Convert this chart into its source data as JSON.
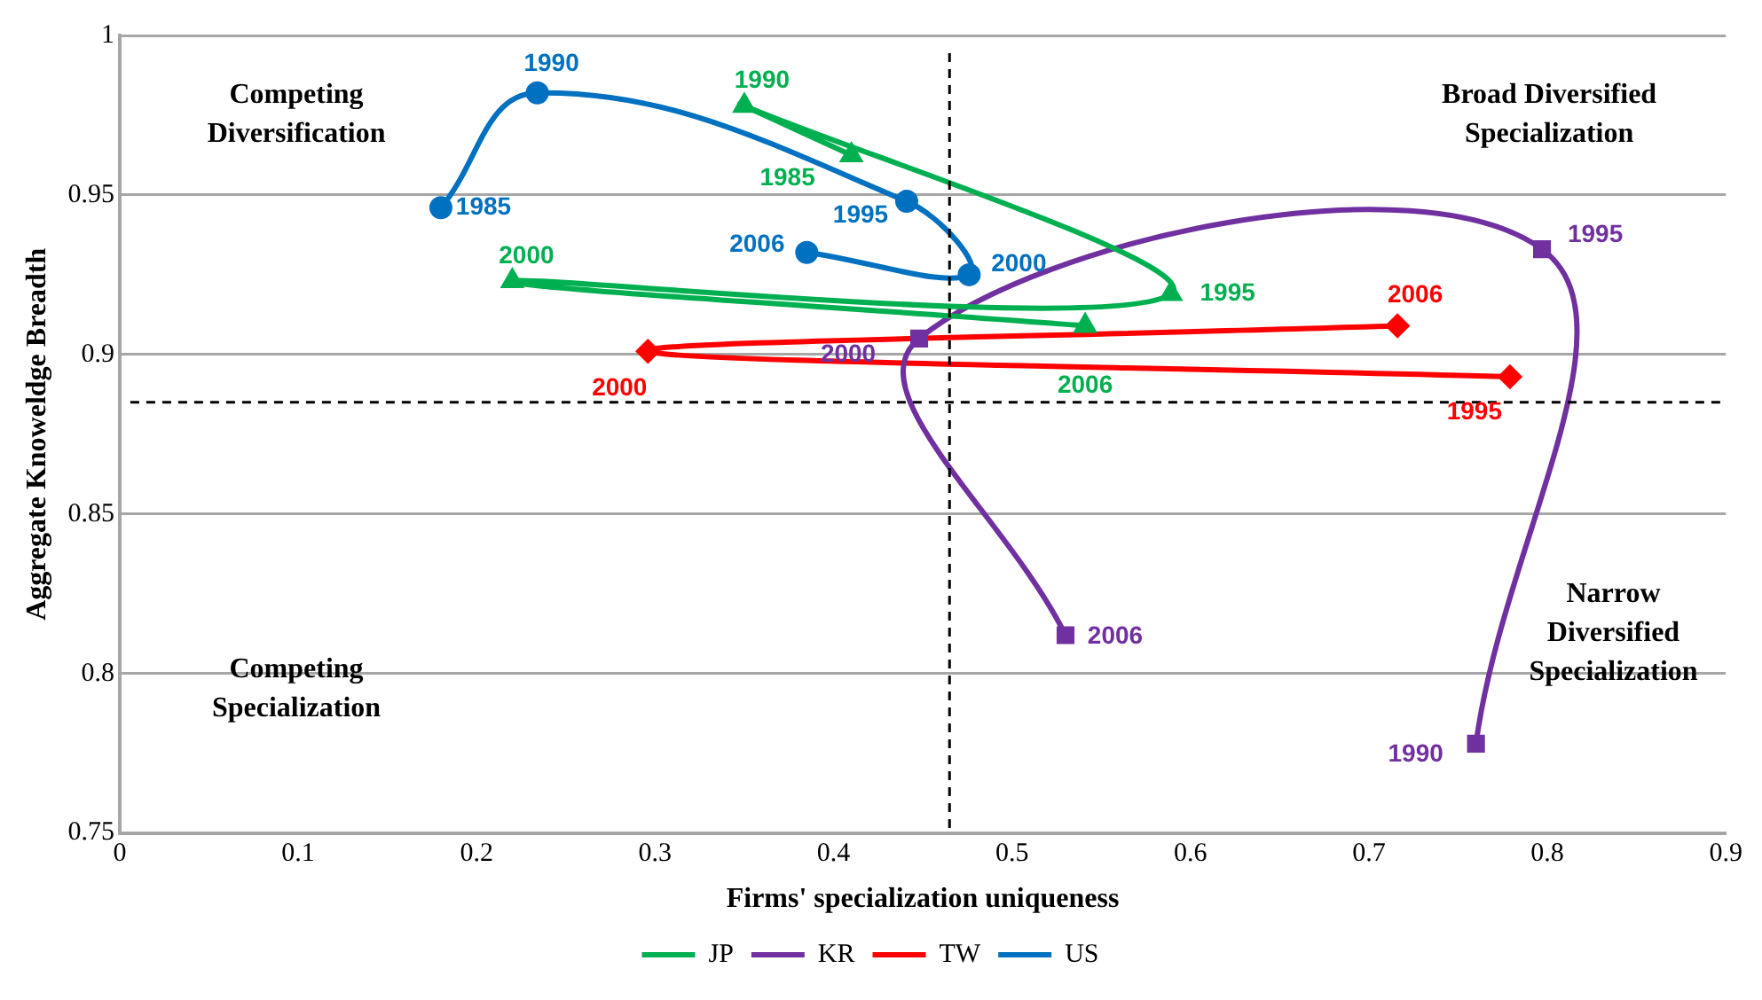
{
  "chart_data": {
    "type": "line",
    "xlabel": "Firms' specialization uniqueness",
    "ylabel": "Aggregate Knoweldge Breadth",
    "xlim": [
      0,
      0.9
    ],
    "xticks": [
      0,
      0.1,
      0.2,
      0.3,
      0.4,
      0.5,
      0.6,
      0.7,
      0.8,
      0.9
    ],
    "ylim": [
      0.75,
      1
    ],
    "yticks": [
      0.75,
      0.8,
      0.85,
      0.9,
      0.95,
      1
    ],
    "grid": "y",
    "legend": "bottom",
    "series": [
      {
        "name": "JP",
        "color": "#00b050",
        "marker": "triangle",
        "x": [
          0.41,
          0.35,
          0.589,
          0.22,
          0.541
        ],
        "values": [
          0.9625,
          0.978,
          0.919,
          0.923,
          0.909
        ]
      },
      {
        "name": "KR",
        "color": "#7030a0",
        "marker": "square",
        "x": [
          0.76,
          0.797,
          0.448,
          0.53
        ],
        "values": [
          0.778,
          0.933,
          0.905,
          0.812
        ]
      },
      {
        "name": "TW",
        "color": "#ff0000",
        "marker": "diamond",
        "x": [
          0.779,
          0.296,
          0.716
        ],
        "values": [
          0.893,
          0.901,
          0.909
        ]
      },
      {
        "name": "US",
        "color": "#0070c0",
        "marker": "circle",
        "x": [
          0.18,
          0.234,
          0.441,
          0.476,
          0.385
        ],
        "values": [
          0.946,
          0.982,
          0.948,
          0.925,
          0.932
        ]
      }
    ],
    "ref_lines": [
      {
        "axis": "x",
        "value": 0.465,
        "color": "#000000",
        "line_style": "dashed"
      },
      {
        "axis": "y",
        "value": 0.885,
        "color": "#000000",
        "line_style": "dashed"
      }
    ],
    "annotations": [
      "Competing Diversification",
      "Broad Diversified Specialization",
      "Competing Specialization",
      "Narrow Diversified Specialization",
      {
        "text": "1985",
        "x": 0.41,
        "y": 0.9625
      },
      {
        "text": "1990",
        "x": 0.35,
        "y": 0.978
      },
      {
        "text": "1995",
        "x": 0.589,
        "y": 0.919
      },
      {
        "text": "2000",
        "x": 0.22,
        "y": 0.923
      },
      {
        "text": "2006",
        "x": 0.541,
        "y": 0.909
      },
      {
        "text": "1990",
        "x": 0.76,
        "y": 0.778
      },
      {
        "text": "1995",
        "x": 0.797,
        "y": 0.933
      },
      {
        "text": "2000",
        "x": 0.448,
        "y": 0.905
      },
      {
        "text": "2006",
        "x": 0.53,
        "y": 0.812
      },
      {
        "text": "1995",
        "x": 0.779,
        "y": 0.893
      },
      {
        "text": "2000",
        "x": 0.296,
        "y": 0.901
      },
      {
        "text": "2006",
        "x": 0.716,
        "y": 0.909
      },
      {
        "text": "1985",
        "x": 0.18,
        "y": 0.946
      },
      {
        "text": "1990",
        "x": 0.234,
        "y": 0.982
      },
      {
        "text": "1995",
        "x": 0.441,
        "y": 0.948
      },
      {
        "text": "2000",
        "x": 0.476,
        "y": 0.925
      },
      {
        "text": "2006",
        "x": 0.385,
        "y": 0.932
      }
    ]
  }
}
